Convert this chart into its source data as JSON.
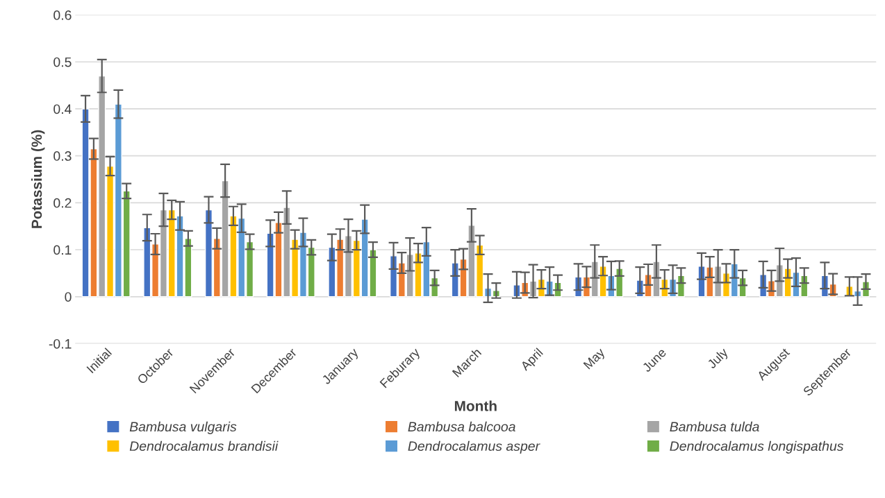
{
  "chart_data": {
    "type": "bar",
    "xlabel": "Month",
    "ylabel": "Potassium (%)",
    "categories": [
      "Initial",
      "October",
      "November",
      "December",
      "January",
      "Feburary",
      "March",
      "April",
      "May",
      "June",
      "July",
      "August",
      "September"
    ],
    "ylim": [
      -0.1,
      0.6
    ],
    "yticks": [
      -0.1,
      0,
      0.1,
      0.2,
      0.3,
      0.4,
      0.5,
      0.6
    ],
    "grid": "y",
    "legend": "bottom",
    "series": [
      {
        "name": "Bambusa vulgaris",
        "color": "#4472c4",
        "values": [
          0.4,
          0.147,
          0.185,
          0.135,
          0.105,
          0.087,
          0.072,
          0.025,
          0.042,
          0.035,
          0.065,
          0.047,
          0.045
        ],
        "errors": [
          0.028,
          0.028,
          0.028,
          0.028,
          0.028,
          0.028,
          0.028,
          0.028,
          0.028,
          0.028,
          0.028,
          0.028,
          0.028
        ]
      },
      {
        "name": "Bambusa balcooa",
        "color": "#ed7d31",
        "values": [
          0.315,
          0.112,
          0.124,
          0.158,
          0.122,
          0.072,
          0.08,
          0.03,
          0.042,
          0.047,
          0.063,
          0.034,
          0.027
        ],
        "errors": [
          0.022,
          0.022,
          0.022,
          0.022,
          0.022,
          0.022,
          0.022,
          0.022,
          0.022,
          0.022,
          0.022,
          0.022,
          0.022
        ]
      },
      {
        "name": "Bambusa tulda",
        "color": "#a5a5a5",
        "values": [
          0.47,
          0.185,
          0.247,
          0.19,
          0.13,
          0.09,
          0.152,
          0.033,
          0.075,
          0.075,
          0.065,
          0.068,
          null
        ],
        "errors": [
          0.035,
          0.035,
          0.035,
          0.035,
          0.035,
          0.035,
          0.035,
          0.035,
          0.035,
          0.035,
          0.035,
          0.035,
          null
        ]
      },
      {
        "name": "Dendrocalamus brandisii",
        "color": "#ffc000",
        "values": [
          0.278,
          0.185,
          0.172,
          0.122,
          0.12,
          0.093,
          0.11,
          0.037,
          0.065,
          0.037,
          0.05,
          0.06,
          0.022
        ],
        "errors": [
          0.02,
          0.02,
          0.02,
          0.02,
          0.02,
          0.02,
          0.02,
          0.02,
          0.02,
          0.02,
          0.02,
          0.02,
          0.02
        ]
      },
      {
        "name": "Dendrocalamus asper",
        "color": "#5b9bd5",
        "values": [
          0.41,
          0.172,
          0.167,
          0.137,
          0.165,
          0.117,
          0.018,
          0.033,
          0.045,
          0.037,
          0.07,
          0.052,
          0.012
        ],
        "errors": [
          0.03,
          0.03,
          0.03,
          0.03,
          0.03,
          0.03,
          0.03,
          0.03,
          0.03,
          0.03,
          0.03,
          0.03,
          0.03
        ]
      },
      {
        "name": "Dendrocalamus longispathus",
        "color": "#70ad47",
        "values": [
          0.225,
          0.124,
          0.117,
          0.105,
          0.1,
          0.04,
          0.013,
          0.03,
          0.06,
          0.045,
          0.04,
          0.045,
          0.032
        ],
        "errors": [
          0.016,
          0.016,
          0.016,
          0.016,
          0.016,
          0.016,
          0.016,
          0.016,
          0.016,
          0.016,
          0.016,
          0.016,
          0.016
        ]
      }
    ]
  }
}
